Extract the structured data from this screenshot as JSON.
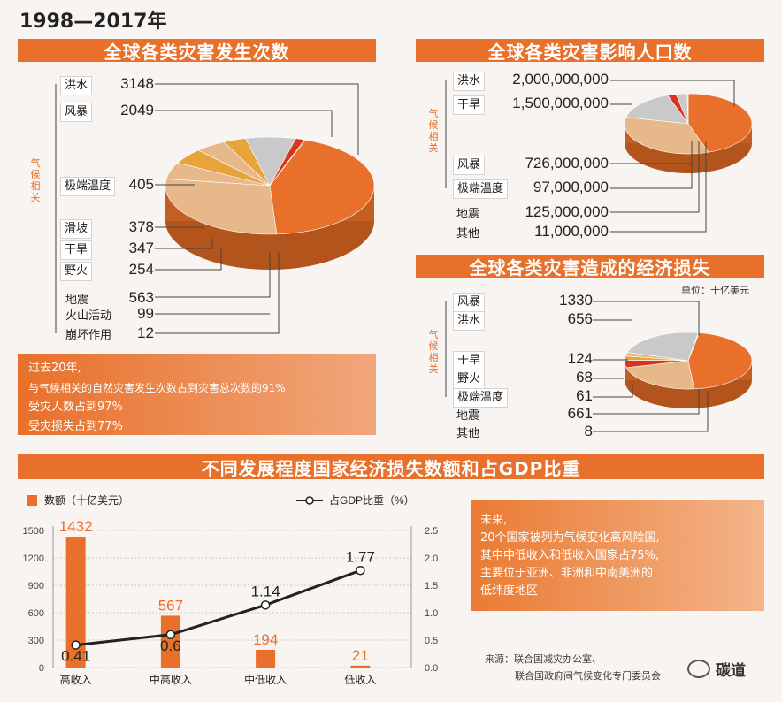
{
  "header": {
    "period": "1998—2017年"
  },
  "sections": {
    "frequency": "全球各类灾害发生次数",
    "population": "全球各类灾害影响人口数",
    "loss": "全球各类灾害造成的经济损失",
    "gdp": "不同发展程度国家经济损失数额和占GDP比重"
  },
  "climate_label": "气候相关",
  "frequency_items": [
    {
      "name": "洪水",
      "value": "3148"
    },
    {
      "name": "风暴",
      "value": "2049"
    },
    {
      "name": "极端温度",
      "value": "405"
    },
    {
      "name": "滑坡",
      "value": "378"
    },
    {
      "name": "干旱",
      "value": "347"
    },
    {
      "name": "野火",
      "value": "254"
    },
    {
      "name": "地震",
      "value": "563"
    },
    {
      "name": "火山活动",
      "value": "99"
    },
    {
      "name": "崩坏作用",
      "value": "12"
    }
  ],
  "population_items": [
    {
      "name": "洪水",
      "value": "2,000,000,000"
    },
    {
      "name": "干旱",
      "value": "1,500,000,000"
    },
    {
      "name": "风暴",
      "value": "726,000,000"
    },
    {
      "name": "极端温度",
      "value": "97,000,000"
    },
    {
      "name": "地震",
      "value": "125,000,000"
    },
    {
      "name": "其他",
      "value": "11,000,000"
    }
  ],
  "loss_unit": "单位：十亿美元",
  "loss_items": [
    {
      "name": "风暴",
      "value": "1330"
    },
    {
      "name": "洪水",
      "value": "656"
    },
    {
      "name": "干旱",
      "value": "124"
    },
    {
      "name": "野火",
      "value": "68"
    },
    {
      "name": "极端温度",
      "value": "61"
    },
    {
      "name": "地震",
      "value": "661"
    },
    {
      "name": "其他",
      "value": "8"
    }
  ],
  "summary_note": {
    "line1": "过去20年,",
    "line2": "与气候相关的自然灾害发生次数占到灾害总次数的91%",
    "line3": "受灾人数占到97%",
    "line4": "受灾损失占到77%"
  },
  "future_note": {
    "line1": "未来,",
    "line2": "20个国家被列为气候变化高风险国,",
    "line3": "其中中低收入和低收入国家占75%,",
    "line4": "主要位于亚洲、非洲和中南美洲的",
    "line5": "低纬度地区"
  },
  "source": {
    "line1": "来源：联合国减灾办公室、",
    "line2": "联合国政府间气候变化专门委员会"
  },
  "watermark": "碳道",
  "colors": {
    "orange": "#e8702a",
    "tan": "#e6b88a",
    "gray": "#c9c9c9",
    "red": "#d9341c",
    "gold": "#e8a43a"
  },
  "chart_data": [
    {
      "type": "pie",
      "title": "全球各类灾害发生次数",
      "labels": [
        "洪水",
        "风暴",
        "极端温度",
        "滑坡",
        "干旱",
        "野火",
        "地震",
        "火山活动",
        "崩坏作用"
      ],
      "values": [
        3148,
        2049,
        405,
        378,
        347,
        254,
        563,
        99,
        12
      ]
    },
    {
      "type": "pie",
      "title": "全球各类灾害影响人口数",
      "labels": [
        "洪水",
        "干旱",
        "风暴",
        "极端温度",
        "地震",
        "其他"
      ],
      "values": [
        2000000000,
        1500000000,
        726000000,
        97000000,
        125000000,
        11000000
      ]
    },
    {
      "type": "pie",
      "title": "全球各类灾害造成的经济损失",
      "labels": [
        "风暴",
        "洪水",
        "干旱",
        "野火",
        "极端温度",
        "地震",
        "其他"
      ],
      "values": [
        1330,
        656,
        124,
        68,
        61,
        661,
        8
      ]
    },
    {
      "type": "bar",
      "title": "不同发展程度国家经济损失数额和占GDP比重",
      "categories": [
        "高收入",
        "中高收入",
        "中低收入",
        "低收入"
      ],
      "series": [
        {
          "name": "数额（十亿美元）",
          "values": [
            1432,
            567,
            194,
            21
          ]
        },
        {
          "name": "占GDP比重（%）",
          "values": [
            0.41,
            0.6,
            1.14,
            1.77
          ]
        }
      ],
      "bar_labels": [
        "1432",
        "567",
        "194",
        "21"
      ],
      "line_labels": [
        "0.41",
        "0.6",
        "1.14",
        "1.77"
      ],
      "left_ticks": [
        "1500",
        "1200",
        "900",
        "600",
        "300",
        "0"
      ],
      "right_ticks": [
        "2.5",
        "2.0",
        "1.5",
        "1.0",
        "0.5",
        "0.0"
      ],
      "ylim": [
        0,
        1500
      ],
      "y2lim": [
        0,
        2.5
      ]
    }
  ]
}
